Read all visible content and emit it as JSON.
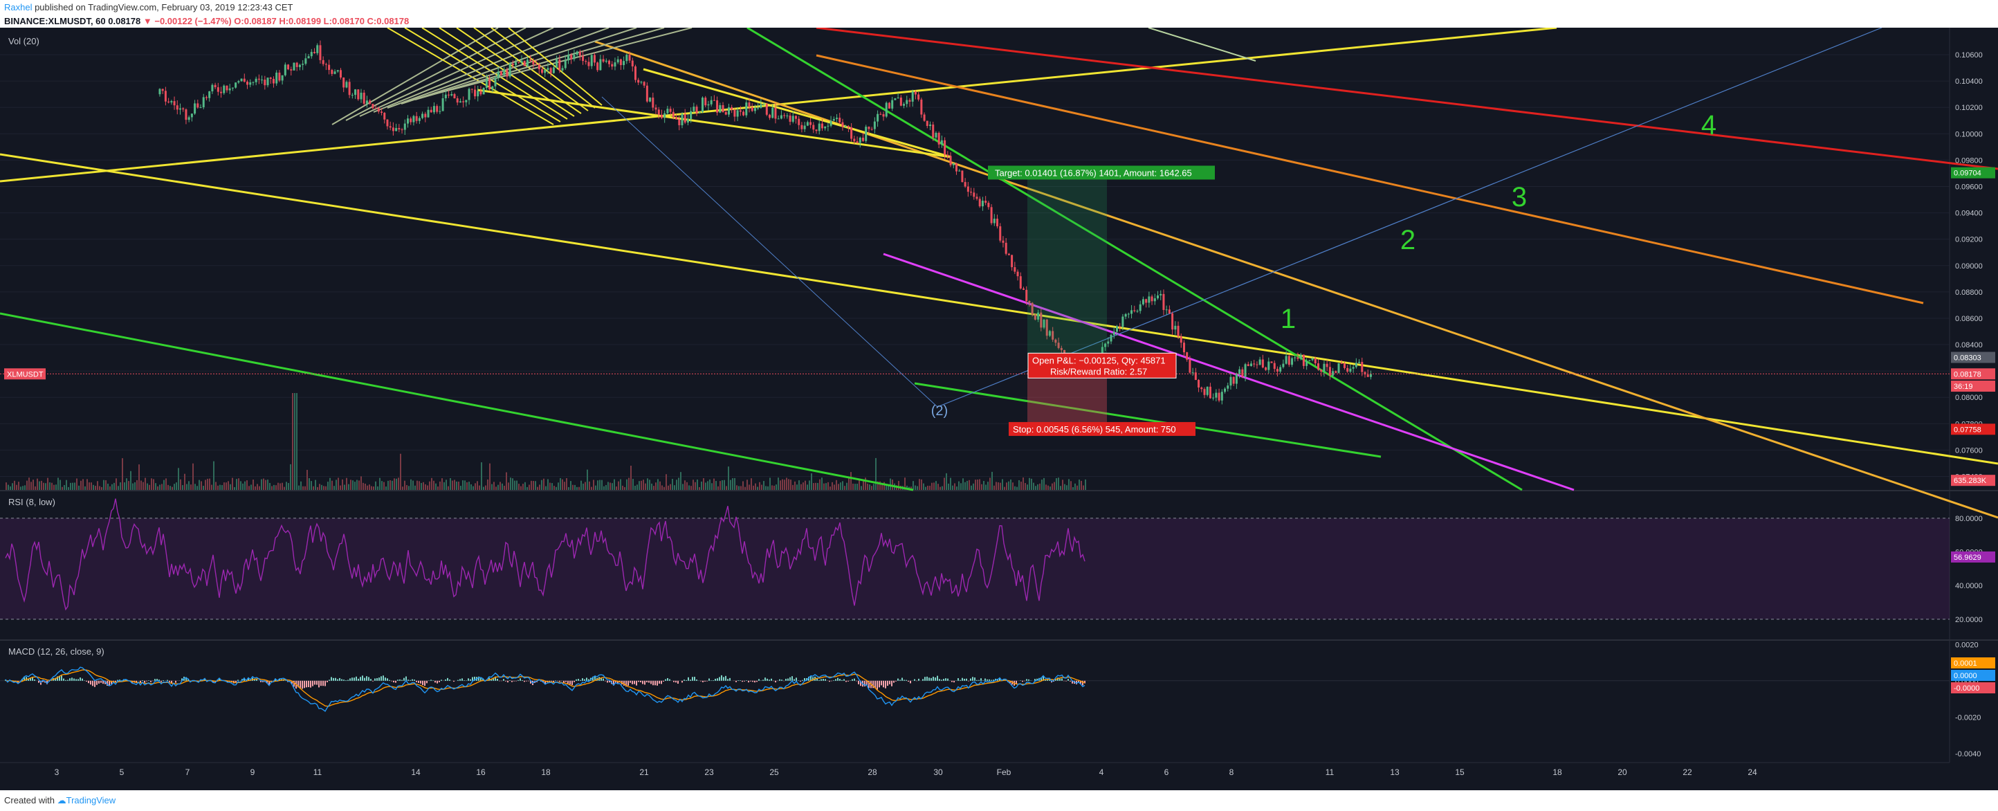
{
  "header": {
    "author": "Raxhel",
    "published": " published on TradingView.com, February 03, 2019 12:23:43 CET",
    "symbol": "BINANCE:XLMUSDT, 60",
    "last": "0.08178",
    "change": "▼ −0.00122 (−1.47%)",
    "ohlc": "O:0.08187 H:0.08199 L:0.08170 C:0.08178"
  },
  "footer": {
    "created_with": "Created with",
    "brand": "TradingView"
  },
  "colors": {
    "background": "#131722",
    "up": "#53b987",
    "down": "#eb4d5c",
    "rsi": "#9c27b0",
    "macd": "#2196f3",
    "signal": "#ff9800",
    "yellow": "#f0e532",
    "green": "#34d32f",
    "magenta": "#e040fb",
    "orange": "#e8831e",
    "red": "#e0211f"
  },
  "chart_data": [
    {
      "type": "candlestick",
      "title": "BINANCE:XLMUSDT, 60",
      "x_ticks": [
        "3",
        "5",
        "7",
        "9",
        "11",
        "14",
        "16",
        "18",
        "21",
        "23",
        "25",
        "28",
        "30",
        "Feb",
        "4",
        "6",
        "8",
        "11",
        "13",
        "15",
        "18",
        "20",
        "22",
        "24"
      ],
      "y_ticks": [
        "0.10600",
        "0.10400",
        "0.10200",
        "0.10000",
        "0.09800",
        "0.09600",
        "0.09400",
        "0.09200",
        "0.09000",
        "0.08800",
        "0.08600",
        "0.08400",
        "0.08200",
        "0.08000",
        "0.07800",
        "0.07600",
        "0.07400"
      ],
      "y_range": [
        0.0735,
        0.107
      ],
      "close_path": [
        [
          0.24,
          0.103
        ],
        [
          0.28,
          0.1015
        ],
        [
          0.32,
          0.1032
        ],
        [
          0.36,
          0.104
        ],
        [
          0.4,
          0.1038
        ],
        [
          0.44,
          0.105
        ],
        [
          0.48,
          0.1065
        ],
        [
          0.52,
          0.104
        ],
        [
          0.56,
          0.1022
        ],
        [
          0.6,
          0.1005
        ],
        [
          0.64,
          0.101
        ],
        [
          0.68,
          0.1025
        ],
        [
          0.72,
          0.103
        ],
        [
          0.76,
          0.1042
        ],
        [
          0.8,
          0.1055
        ],
        [
          0.84,
          0.1048
        ],
        [
          0.88,
          0.106
        ],
        [
          0.92,
          0.1052
        ],
        [
          0.96,
          0.1058
        ],
        [
          1.0,
          0.102
        ],
        [
          1.04,
          0.101
        ],
        [
          1.08,
          0.1024
        ],
        [
          1.12,
          0.1015
        ],
        [
          1.16,
          0.1022
        ],
        [
          1.2,
          0.1012
        ],
        [
          1.24,
          0.1005
        ],
        [
          1.28,
          0.101
        ],
        [
          1.32,
          0.0995
        ],
        [
          1.36,
          0.102
        ],
        [
          1.4,
          0.103
        ],
        [
          1.44,
          0.0995
        ],
        [
          1.48,
          0.0965
        ],
        [
          1.52,
          0.094
        ],
        [
          1.55,
          0.0905
        ],
        [
          1.58,
          0.087
        ],
        [
          1.61,
          0.085
        ],
        [
          1.64,
          0.083
        ],
        [
          1.66,
          0.0818
        ],
        [
          1.69,
          0.0832
        ],
        [
          1.72,
          0.0858
        ],
        [
          1.75,
          0.087
        ],
        [
          1.78,
          0.088
        ],
        [
          1.81,
          0.0845
        ],
        [
          1.84,
          0.081
        ],
        [
          1.87,
          0.08
        ],
        [
          1.9,
          0.0815
        ],
        [
          1.93,
          0.0828
        ],
        [
          1.96,
          0.0822
        ],
        [
          1.99,
          0.083
        ],
        [
          2.02,
          0.0826
        ],
        [
          2.05,
          0.082
        ],
        [
          2.08,
          0.0824
        ],
        [
          2.11,
          0.0818
        ]
      ],
      "last_price": "0.08178",
      "last_label": "XLMUSDT",
      "price_tags": [
        {
          "value": "0.09704",
          "color": "#1e9b2c",
          "y": 0.09704
        },
        {
          "value": "0.08303",
          "color": "#555a66",
          "y": 0.08303
        },
        {
          "value": "0.08178",
          "color": "#eb4d5c",
          "y": 0.08178
        },
        {
          "value": "36:19",
          "color": "#eb4d5c",
          "y": 0.08085
        },
        {
          "value": "0.07758",
          "color": "#e0211f",
          "y": 0.07758
        },
        {
          "value": "635.283K",
          "color": "#eb4d5c",
          "y": 0.0737
        }
      ],
      "volume_label": "Vol (20)",
      "position": {
        "target": "Target: 0.01401 (16.87%) 1401, Amount: 1642.65",
        "open_pl": "Open P&L: −0.00125, Qty: 45871",
        "risk_reward": "Risk/Reward Ratio: 2.57",
        "stop": "Stop: 0.00545 (6.56%) 545, Amount: 750"
      },
      "wave_labels": [
        {
          "text": "1",
          "color": "#34d32f"
        },
        {
          "text": "2",
          "color": "#34d32f"
        },
        {
          "text": "3",
          "color": "#34d32f"
        },
        {
          "text": "4",
          "color": "#34d32f"
        },
        {
          "text": "(2)",
          "color": "#7aa7e0"
        }
      ]
    },
    {
      "type": "line",
      "title": "RSI (8, low)",
      "y_ticks": [
        "80.0000",
        "60.0000",
        "40.0000",
        "20.0000"
      ],
      "ylim": [
        8,
        96
      ],
      "bands": [
        20,
        80
      ],
      "last_value": "56.9629"
    },
    {
      "type": "line",
      "title": "MACD (12, 26, close, 9)",
      "y_ticks": [
        "0.0020",
        "0.0000",
        "-0.0020",
        "-0.0040"
      ],
      "ylim": [
        -0.0045,
        0.0022
      ],
      "last_tags": [
        {
          "value": "0.0001",
          "color": "#ff9800"
        },
        {
          "value": "0.0000",
          "color": "#2196f3"
        },
        {
          "value": "-0.0000",
          "color": "#eb4d5c"
        }
      ]
    }
  ]
}
